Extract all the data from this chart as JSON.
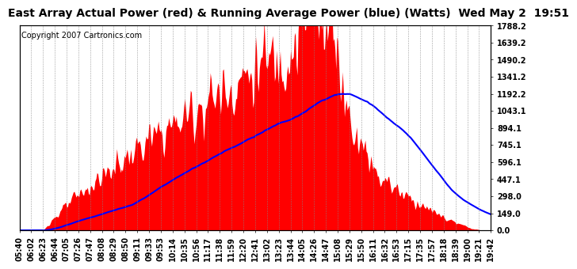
{
  "title": "East Array Actual Power (red) & Running Average Power (blue) (Watts)  Wed May 2  19:51",
  "copyright": "Copyright 2007 Cartronics.com",
  "ylabel_right_values": [
    0.0,
    149.0,
    298.0,
    447.1,
    596.1,
    745.1,
    894.1,
    1043.1,
    1192.2,
    1341.2,
    1490.2,
    1639.2,
    1788.2
  ],
  "ymax": 1788.2,
  "ymin": 0.0,
  "background_color": "#ffffff",
  "plot_bg_color": "#ffffff",
  "grid_color": "#888888",
  "bar_color": "#ff0000",
  "line_color": "#0000ff",
  "title_fontsize": 10,
  "copyright_fontsize": 7,
  "tick_fontsize": 7,
  "n_points": 500,
  "time_labels": [
    "05:40",
    "06:02",
    "06:23",
    "06:44",
    "07:05",
    "07:26",
    "07:47",
    "08:08",
    "08:29",
    "08:50",
    "09:11",
    "09:33",
    "09:53",
    "10:14",
    "10:35",
    "10:56",
    "11:17",
    "11:38",
    "11:59",
    "12:20",
    "12:41",
    "13:02",
    "13:23",
    "13:44",
    "14:05",
    "14:26",
    "14:47",
    "15:08",
    "15:29",
    "15:50",
    "16:11",
    "16:32",
    "16:53",
    "17:15",
    "17:35",
    "17:57",
    "18:18",
    "18:39",
    "19:00",
    "19:21",
    "19:42"
  ]
}
